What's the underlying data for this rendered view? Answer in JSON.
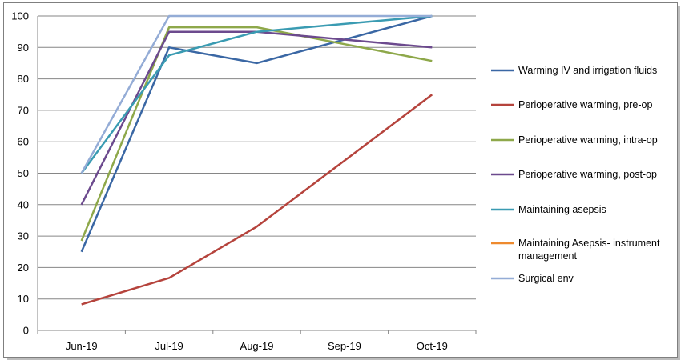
{
  "chart_data": {
    "type": "line",
    "title": "",
    "xlabel": "",
    "ylabel": "",
    "categories": [
      "Jun-19",
      "Jul-19",
      "Aug-19",
      "Sep-19",
      "Oct-19"
    ],
    "ylim": [
      0,
      100
    ],
    "yticks": [
      0,
      10,
      20,
      30,
      40,
      50,
      60,
      70,
      80,
      90,
      100
    ],
    "grid": true,
    "legend_position": "right",
    "series": [
      {
        "name": "Warming IV and irrigation fluids",
        "color": "#3a67a4",
        "values": [
          25,
          90,
          85,
          null,
          100
        ]
      },
      {
        "name": "Perioperative warming, pre-op",
        "color": "#b5433c",
        "values": [
          8.3,
          16.7,
          33,
          null,
          75
        ]
      },
      {
        "name": "Perioperative warming, intra-op",
        "color": "#8ea84a",
        "values": [
          28.5,
          96.4,
          96.4,
          null,
          85.7
        ]
      },
      {
        "name": "Perioperative warming, post-op",
        "color": "#6c4a8e",
        "values": [
          40,
          95,
          95,
          null,
          90
        ]
      },
      {
        "name": "Maintaining asepsis",
        "color": "#3a9bb2",
        "values": [
          50,
          87.5,
          95,
          null,
          100
        ]
      },
      {
        "name": "Maintaining Asepsis- instrument management",
        "legend_lines": [
          "Maintaining Asepsis- instrument",
          "management"
        ],
        "color": "#ee8a2e",
        "values": [
          null,
          null,
          null,
          null,
          null
        ]
      },
      {
        "name": "Surgical env",
        "color": "#94acd6",
        "values": [
          50,
          100,
          100,
          null,
          100
        ]
      }
    ]
  }
}
